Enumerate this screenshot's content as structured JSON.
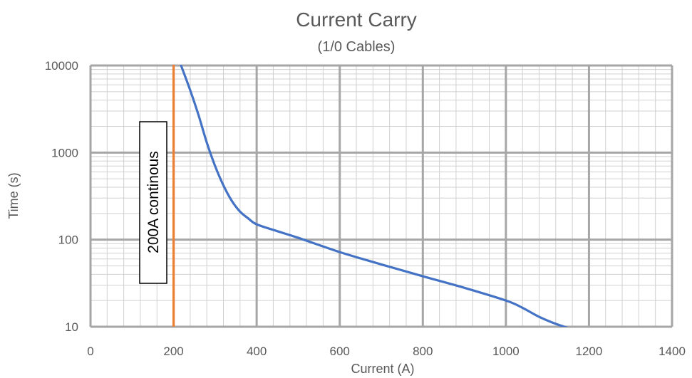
{
  "chart_data": {
    "type": "line",
    "title": "Current Carry",
    "subtitle": "(1/0 Cables)",
    "xlabel": "Current (A)",
    "ylabel": "Time (s)",
    "xlim": [
      0,
      1400
    ],
    "ylim": [
      10,
      10000
    ],
    "y_scale": "log",
    "grid": true,
    "x_ticks": [
      "0",
      "200",
      "400",
      "600",
      "800",
      "1000",
      "1200",
      "1400"
    ],
    "y_ticks": [
      "10",
      "100",
      "1000",
      "10000"
    ],
    "series": [
      {
        "color": "#4472C4",
        "x": [
          218,
          240,
          260,
          280,
          300,
          320,
          340,
          360,
          380,
          400,
          450,
          500,
          600,
          700,
          800,
          900,
          1000,
          1040,
          1080,
          1120,
          1150
        ],
        "y": [
          10000,
          5200,
          2700,
          1300,
          700,
          420,
          280,
          210,
          175,
          150,
          125,
          105,
          72,
          52,
          38,
          28,
          20,
          16.5,
          13,
          10.8,
          9.7
        ]
      },
      {
        "color": "#ED7D31",
        "x": [
          200,
          200
        ],
        "y": [
          10,
          10000
        ]
      }
    ],
    "annotation": {
      "text": "200A continous",
      "rotation": -90
    }
  }
}
